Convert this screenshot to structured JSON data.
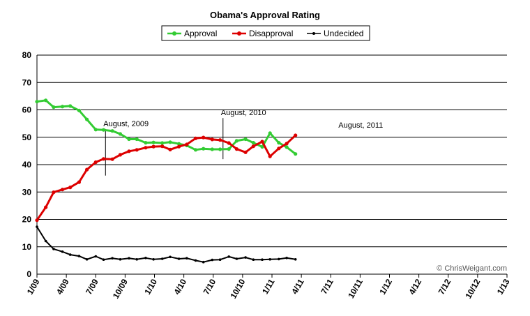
{
  "chart_data": {
    "type": "line",
    "title": "Obama's Approval Rating",
    "xlabel": "",
    "ylabel": "",
    "ylim": [
      0,
      80
    ],
    "yticks": [
      0,
      10,
      20,
      30,
      40,
      50,
      60,
      70,
      80
    ],
    "xlim": [
      0,
      48
    ],
    "xticks": [
      {
        "label": "1/09",
        "x": 0
      },
      {
        "label": "4/09",
        "x": 3
      },
      {
        "label": "7/09",
        "x": 6
      },
      {
        "label": "10/09",
        "x": 9
      },
      {
        "label": "1/10",
        "x": 12
      },
      {
        "label": "4/10",
        "x": 15
      },
      {
        "label": "7/10",
        "x": 18
      },
      {
        "label": "10/10",
        "x": 21
      },
      {
        "label": "1/11",
        "x": 24
      },
      {
        "label": "4/11",
        "x": 27
      },
      {
        "label": "7/11",
        "x": 30
      },
      {
        "label": "10/11",
        "x": 33
      },
      {
        "label": "1/12",
        "x": 36
      },
      {
        "label": "4/12",
        "x": 39
      },
      {
        "label": "7/12",
        "x": 42
      },
      {
        "label": "10/12",
        "x": 45
      },
      {
        "label": "1/13",
        "x": 48
      }
    ],
    "grid": "horizontal",
    "legend_position": "top-center",
    "series": [
      {
        "name": "Approval",
        "color": "#33cc33",
        "x": [
          0,
          0.9,
          1.7,
          2.6,
          3.4,
          4.3,
          5.1,
          6.0,
          6.8,
          7.7,
          8.5,
          9.4,
          10.2,
          11.1,
          11.9,
          12.8,
          13.6,
          14.5,
          15.3,
          16.2,
          17.0,
          17.9,
          18.7,
          19.6,
          20.4,
          21.3,
          22.1,
          23.0,
          23.8,
          24.7,
          25.5,
          26.4,
          27.2,
          28.1,
          28.9,
          29.8,
          30.6
        ],
        "y": [
          63.0,
          63.5,
          61.0,
          61.2,
          61.4,
          59.8,
          56.5,
          52.8,
          52.7,
          52.3,
          51.2,
          49.3,
          49.3,
          48.0,
          48.1,
          47.9,
          48.2,
          47.6,
          47.0,
          45.4,
          45.8,
          45.6,
          45.6,
          45.7,
          48.7,
          49.3,
          48.0,
          46.5,
          51.5,
          48.0,
          46.4,
          43.9,
          null,
          null,
          null,
          null,
          null
        ]
      },
      {
        "name": "Disapproval",
        "color": "#dd0000",
        "x": [
          0,
          0.9,
          1.7,
          2.6,
          3.4,
          4.3,
          5.1,
          6.0,
          6.8,
          7.7,
          8.5,
          9.4,
          10.2,
          11.1,
          11.9,
          12.8,
          13.6,
          14.5,
          15.3,
          16.2,
          17.0,
          17.9,
          18.7,
          19.6,
          20.4,
          21.3,
          22.1,
          23.0,
          23.8,
          24.7,
          25.5,
          26.4,
          27.2,
          28.1,
          28.9,
          29.8,
          30.6
        ],
        "y": [
          19.7,
          24.4,
          29.9,
          30.9,
          31.7,
          33.6,
          38.2,
          40.9,
          42.1,
          42.0,
          43.6,
          44.9,
          45.4,
          46.2,
          46.6,
          46.7,
          45.5,
          46.6,
          47.4,
          49.6,
          49.9,
          49.2,
          49.0,
          47.9,
          45.7,
          44.5,
          46.7,
          48.4,
          43.0,
          45.9,
          47.7,
          50.7,
          null,
          null,
          null,
          null,
          null
        ]
      },
      {
        "name": "Undecided",
        "color": "#000000",
        "x": [
          0,
          0.9,
          1.7,
          2.6,
          3.4,
          4.3,
          5.1,
          6.0,
          6.8,
          7.7,
          8.5,
          9.4,
          10.2,
          11.1,
          11.9,
          12.8,
          13.6,
          14.5,
          15.3,
          16.2,
          17.0,
          17.9,
          18.7,
          19.6,
          20.4,
          21.3,
          22.1,
          23.0,
          23.8,
          24.7,
          25.5,
          26.4,
          27.2,
          28.1,
          28.9,
          29.8,
          30.6
        ],
        "y": [
          17.3,
          12.1,
          9.2,
          8.2,
          7.1,
          6.6,
          5.4,
          6.5,
          5.3,
          5.8,
          5.4,
          5.8,
          5.4,
          5.9,
          5.4,
          5.6,
          6.3,
          5.6,
          5.8,
          5.0,
          4.4,
          5.2,
          5.3,
          6.4,
          5.6,
          6.1,
          5.3,
          5.3,
          5.4,
          5.5,
          5.9,
          5.4,
          null,
          null,
          null,
          null,
          null
        ]
      }
    ],
    "annotations": [
      {
        "text": "August, 2009",
        "x": 7.0,
        "line_from": 36,
        "line_to": 52
      },
      {
        "text": "August, 2010",
        "x": 19.0,
        "line_from": 42,
        "line_to": 56
      },
      {
        "text": "August, 2011",
        "x": 31.0,
        "line_from": null,
        "line_to": null
      }
    ],
    "copyright": "© ChrisWeigant.com"
  }
}
